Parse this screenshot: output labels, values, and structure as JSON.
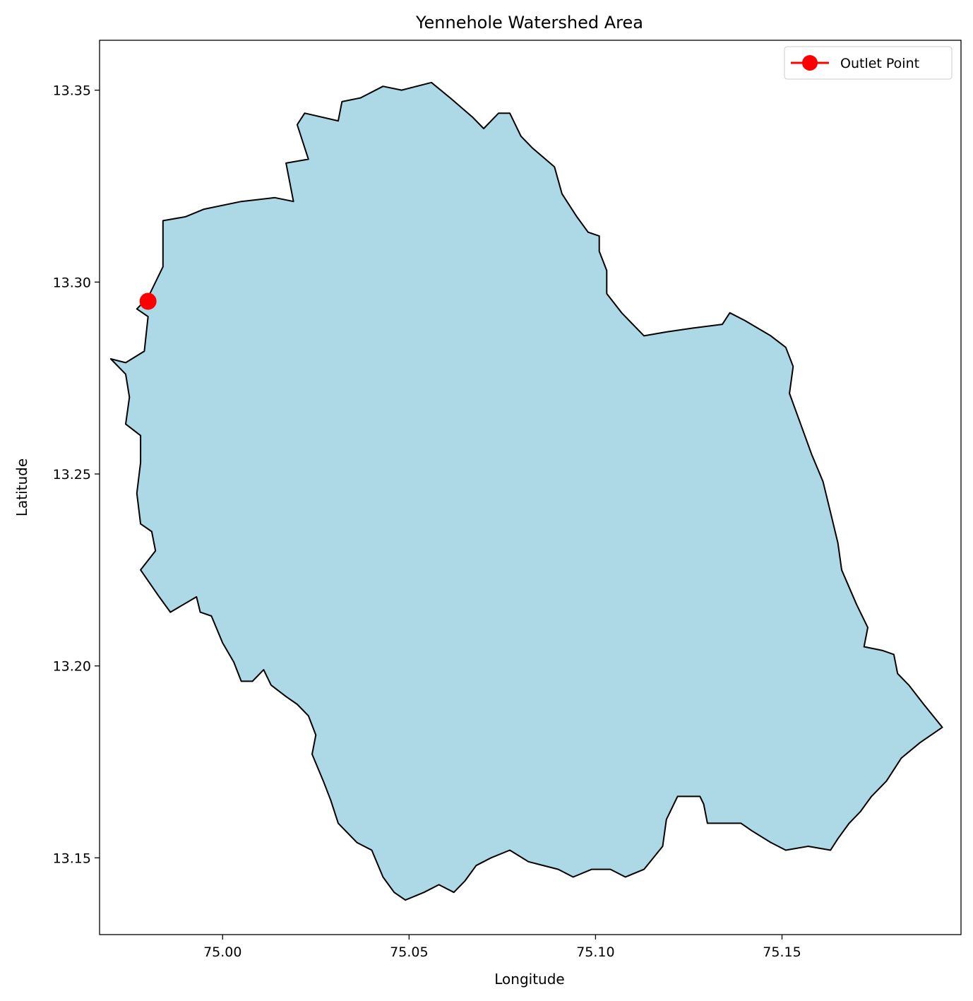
{
  "map": {
    "title": "Yennehole Watershed Area",
    "xlabel": "Longitude",
    "ylabel": "Latitude",
    "xlim": [
      74.967,
      75.198
    ],
    "ylim": [
      13.13,
      13.363
    ],
    "x_ticks": [
      {
        "value": 75.0,
        "label": "75.00"
      },
      {
        "value": 75.05,
        "label": "75.05"
      },
      {
        "value": 75.1,
        "label": "75.10"
      },
      {
        "value": 75.15,
        "label": "75.15"
      }
    ],
    "y_ticks": [
      {
        "value": 13.15,
        "label": "13.15"
      },
      {
        "value": 13.2,
        "label": "13.20"
      },
      {
        "value": 13.25,
        "label": "13.25"
      },
      {
        "value": 13.3,
        "label": "13.30"
      },
      {
        "value": 13.35,
        "label": "13.35"
      }
    ],
    "watershed": {
      "fill_color": "#add8e6",
      "edge_color": "#000000",
      "boundary": [
        [
          74.98,
          13.296
        ],
        [
          74.984,
          13.304
        ],
        [
          74.984,
          13.316
        ],
        [
          74.99,
          13.317
        ],
        [
          74.995,
          13.319
        ],
        [
          75.005,
          13.321
        ],
        [
          75.014,
          13.322
        ],
        [
          75.019,
          13.321
        ],
        [
          75.017,
          13.331
        ],
        [
          75.023,
          13.332
        ],
        [
          75.02,
          13.341
        ],
        [
          75.022,
          13.344
        ],
        [
          75.031,
          13.342
        ],
        [
          75.032,
          13.347
        ],
        [
          75.037,
          13.348
        ],
        [
          75.043,
          13.351
        ],
        [
          75.048,
          13.35
        ],
        [
          75.056,
          13.352
        ],
        [
          75.061,
          13.348
        ],
        [
          75.067,
          13.343
        ],
        [
          75.07,
          13.34
        ],
        [
          75.074,
          13.344
        ],
        [
          75.077,
          13.344
        ],
        [
          75.08,
          13.338
        ],
        [
          75.083,
          13.335
        ],
        [
          75.089,
          13.33
        ],
        [
          75.091,
          13.323
        ],
        [
          75.095,
          13.317
        ],
        [
          75.098,
          13.313
        ],
        [
          75.101,
          13.312
        ],
        [
          75.101,
          13.308
        ],
        [
          75.103,
          13.303
        ],
        [
          75.103,
          13.297
        ],
        [
          75.107,
          13.292
        ],
        [
          75.113,
          13.286
        ],
        [
          75.119,
          13.287
        ],
        [
          75.126,
          13.288
        ],
        [
          75.134,
          13.289
        ],
        [
          75.136,
          13.292
        ],
        [
          75.14,
          13.29
        ],
        [
          75.147,
          13.286
        ],
        [
          75.151,
          13.283
        ],
        [
          75.153,
          13.278
        ],
        [
          75.152,
          13.271
        ],
        [
          75.155,
          13.263
        ],
        [
          75.158,
          13.255
        ],
        [
          75.161,
          13.248
        ],
        [
          75.163,
          13.24
        ],
        [
          75.165,
          13.232
        ],
        [
          75.166,
          13.225
        ],
        [
          75.17,
          13.216
        ],
        [
          75.173,
          13.21
        ],
        [
          75.172,
          13.205
        ],
        [
          75.177,
          13.204
        ],
        [
          75.18,
          13.203
        ],
        [
          75.181,
          13.198
        ],
        [
          75.184,
          13.195
        ],
        [
          75.188,
          13.19
        ],
        [
          75.193,
          13.184
        ],
        [
          75.187,
          13.18
        ],
        [
          75.182,
          13.176
        ],
        [
          75.178,
          13.17
        ],
        [
          75.174,
          13.166
        ],
        [
          75.171,
          13.162
        ],
        [
          75.168,
          13.159
        ],
        [
          75.165,
          13.155
        ],
        [
          75.163,
          13.152
        ],
        [
          75.157,
          13.153
        ],
        [
          75.151,
          13.152
        ],
        [
          75.147,
          13.154
        ],
        [
          75.142,
          13.157
        ],
        [
          75.139,
          13.159
        ],
        [
          75.134,
          13.159
        ],
        [
          75.13,
          13.159
        ],
        [
          75.129,
          13.164
        ],
        [
          75.128,
          13.166
        ],
        [
          75.122,
          13.166
        ],
        [
          75.119,
          13.16
        ],
        [
          75.118,
          13.153
        ],
        [
          75.113,
          13.147
        ],
        [
          75.108,
          13.145
        ],
        [
          75.104,
          13.147
        ],
        [
          75.099,
          13.147
        ],
        [
          75.094,
          13.145
        ],
        [
          75.09,
          13.147
        ],
        [
          75.082,
          13.149
        ],
        [
          75.077,
          13.152
        ],
        [
          75.072,
          13.15
        ],
        [
          75.068,
          13.148
        ],
        [
          75.065,
          13.144
        ],
        [
          75.062,
          13.141
        ],
        [
          75.058,
          13.143
        ],
        [
          75.054,
          13.141
        ],
        [
          75.049,
          13.139
        ],
        [
          75.046,
          13.141
        ],
        [
          75.043,
          13.145
        ],
        [
          75.04,
          13.152
        ],
        [
          75.036,
          13.154
        ],
        [
          75.031,
          13.159
        ],
        [
          75.029,
          13.165
        ],
        [
          75.027,
          13.17
        ],
        [
          75.024,
          13.177
        ],
        [
          75.025,
          13.182
        ],
        [
          75.023,
          13.187
        ],
        [
          75.02,
          13.19
        ],
        [
          75.017,
          13.192
        ],
        [
          75.013,
          13.195
        ],
        [
          75.011,
          13.199
        ],
        [
          75.008,
          13.196
        ],
        [
          75.005,
          13.196
        ],
        [
          75.003,
          13.201
        ],
        [
          75.0,
          13.206
        ],
        [
          74.997,
          13.213
        ],
        [
          74.994,
          13.214
        ],
        [
          74.993,
          13.218
        ],
        [
          74.986,
          13.214
        ],
        [
          74.983,
          13.218
        ],
        [
          74.978,
          13.225
        ],
        [
          74.982,
          13.23
        ],
        [
          74.981,
          13.235
        ],
        [
          74.978,
          13.237
        ],
        [
          74.977,
          13.245
        ],
        [
          74.978,
          13.253
        ],
        [
          74.978,
          13.26
        ],
        [
          74.974,
          13.263
        ],
        [
          74.975,
          13.27
        ],
        [
          74.974,
          13.276
        ],
        [
          74.97,
          13.28
        ],
        [
          74.974,
          13.279
        ],
        [
          74.979,
          13.282
        ],
        [
          74.98,
          13.291
        ],
        [
          74.977,
          13.293
        ]
      ]
    },
    "legend": {
      "position": "upper right",
      "entries": [
        {
          "label": "Outlet Point",
          "color": "#ff0000",
          "marker": "circle-with-line"
        }
      ]
    },
    "outlet": {
      "name": "Outlet Point",
      "lon": 74.98,
      "lat": 13.295,
      "color": "#ff0000"
    }
  }
}
